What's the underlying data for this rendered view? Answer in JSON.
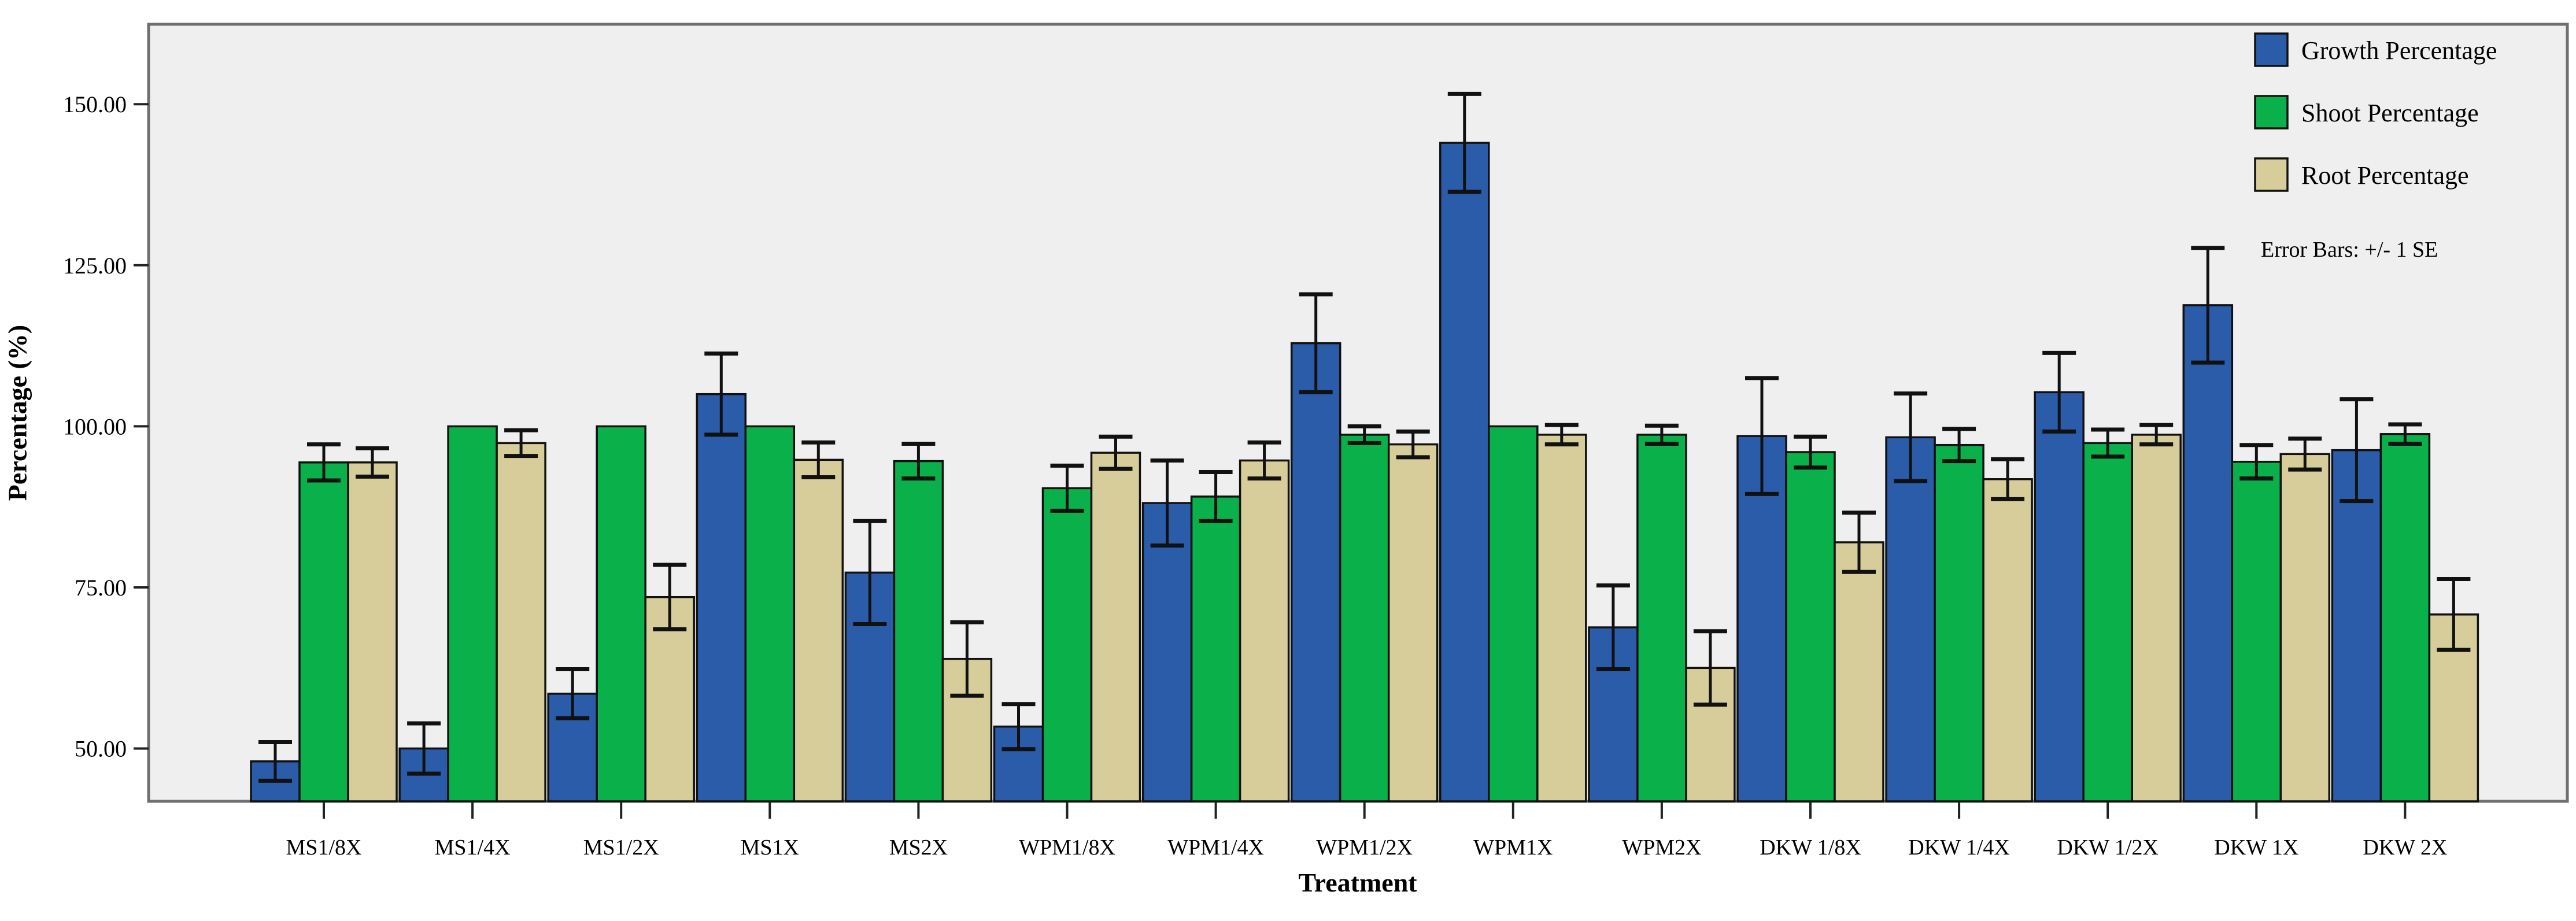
{
  "chart_data": {
    "type": "bar",
    "title": "",
    "xlabel": "Treatment",
    "ylabel": "Percentage (%)",
    "ylim": [
      41.8,
      162.4
    ],
    "yticks": [
      {
        "value": 50,
        "label": "50.00"
      },
      {
        "value": 75,
        "label": "75.00"
      },
      {
        "value": 100,
        "label": "100.00"
      },
      {
        "value": 125,
        "label": "125.00"
      },
      {
        "value": 150,
        "label": "150.00"
      }
    ],
    "grid": false,
    "legend_position": "top-right",
    "error_note": "Error Bars: +/- 1 SE",
    "categories": [
      "MS1/8X",
      "MS1/4X",
      "MS1/2X",
      "MS1X",
      "MS2X",
      "WPM1/8X",
      "WPM1/4X",
      "WPM1/2X",
      "WPM1X",
      "WPM2X",
      "DKW 1/8X",
      "DKW 1/4X",
      "DKW 1/2X",
      "DKW 1X",
      "DKW 2X"
    ],
    "series": [
      {
        "name": "Growth Percentage",
        "color": "#2a5caa",
        "values": [
          48.0,
          50.0,
          58.5,
          105.0,
          77.3,
          53.4,
          88.1,
          112.9,
          144.0,
          68.8,
          98.5,
          98.3,
          105.3,
          118.8,
          96.3
        ],
        "se": [
          3.0,
          3.9,
          3.8,
          6.3,
          8.0,
          3.5,
          6.6,
          7.6,
          7.6,
          6.5,
          9.0,
          6.8,
          6.1,
          8.9,
          7.9
        ]
      },
      {
        "name": "Shoot Percentage",
        "color": "#0ab04a",
        "values": [
          94.4,
          100.0,
          100.0,
          100.0,
          94.6,
          90.4,
          89.1,
          98.7,
          100.0,
          98.7,
          96.0,
          97.1,
          97.4,
          94.5,
          98.8
        ],
        "se": [
          2.8,
          0,
          0,
          0,
          2.7,
          3.5,
          3.8,
          1.3,
          0,
          1.4,
          2.4,
          2.5,
          2.1,
          2.6,
          1.5
        ]
      },
      {
        "name": "Root Percentage",
        "color": "#d7cd9a",
        "values": [
          94.4,
          97.4,
          73.5,
          94.8,
          63.9,
          95.9,
          94.7,
          97.2,
          98.7,
          62.5,
          82.0,
          91.8,
          98.7,
          95.7,
          70.8
        ],
        "se": [
          2.2,
          2.0,
          5.0,
          2.7,
          5.7,
          2.5,
          2.8,
          2.0,
          1.5,
          5.7,
          4.6,
          3.1,
          1.5,
          2.4,
          5.5
        ]
      }
    ],
    "colors": {
      "plot_background": "#f0efef",
      "frame": "#6f6f6f",
      "bar_stroke": "#111111",
      "error_bar": "#111111",
      "text": "#000000",
      "page_background": "#ffffff"
    }
  },
  "axes": {
    "y_title": "Percentage (%)",
    "x_title": "Treatment"
  },
  "legend": {
    "items": [
      "Growth Percentage",
      "Shoot Percentage",
      "Root Percentage"
    ],
    "note": "Error Bars: +/- 1 SE"
  }
}
